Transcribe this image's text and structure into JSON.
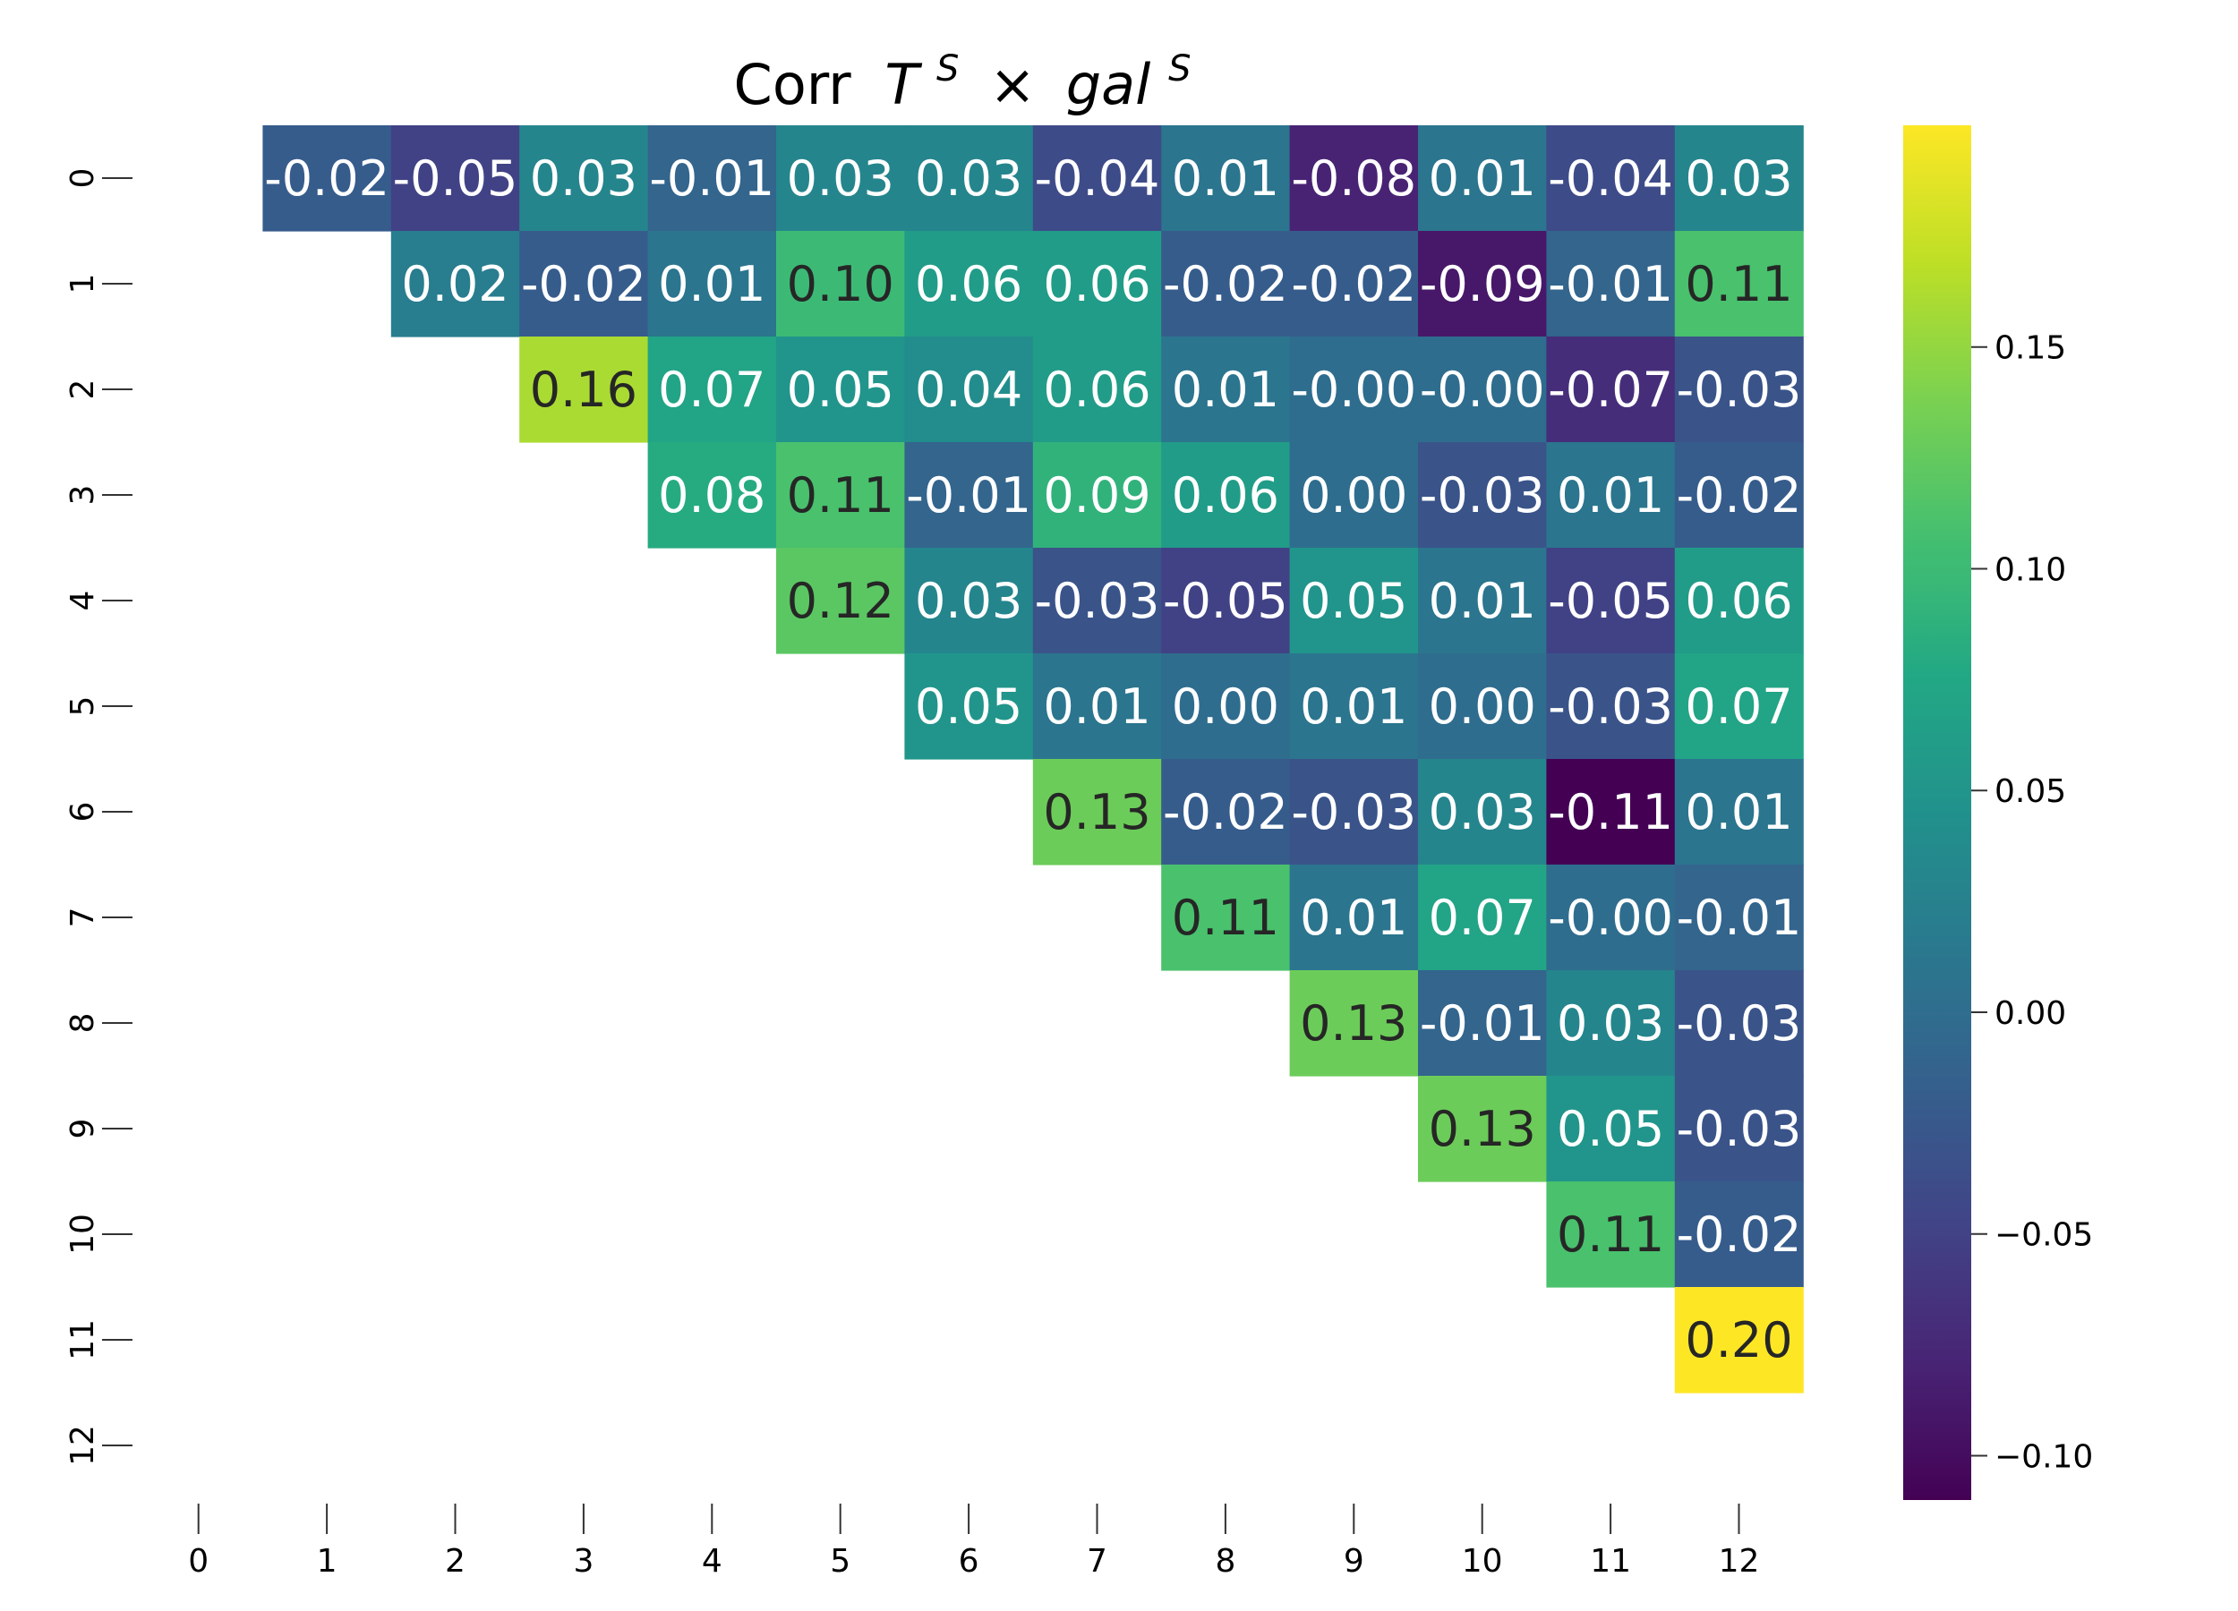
{
  "chart_data": {
    "type": "heatmap",
    "title_text": "Corr",
    "title_sym_a": "T",
    "title_sup_a": "S",
    "title_op": "×",
    "title_sym_b": "gal",
    "title_sup_b": "S",
    "x_labels": [
      "0",
      "1",
      "2",
      "3",
      "4",
      "5",
      "6",
      "7",
      "8",
      "9",
      "10",
      "11",
      "12"
    ],
    "y_labels": [
      "0",
      "1",
      "2",
      "3",
      "4",
      "5",
      "6",
      "7",
      "8",
      "9",
      "10",
      "11",
      "12"
    ],
    "colormap": "viridis",
    "vmin": -0.11,
    "vmax": 0.2,
    "colorbar_ticks": [
      0.15,
      0.1,
      0.05,
      0.0,
      -0.05,
      -0.1
    ],
    "colorbar_tick_labels": [
      "0.15",
      "0.10",
      "0.05",
      "0.00",
      "−0.05",
      "−0.10"
    ],
    "cells": [
      {
        "row": 0,
        "col": 1,
        "value": -0.02,
        "label": "-0.02"
      },
      {
        "row": 0,
        "col": 2,
        "value": -0.05,
        "label": "-0.05"
      },
      {
        "row": 0,
        "col": 3,
        "value": 0.03,
        "label": "0.03"
      },
      {
        "row": 0,
        "col": 4,
        "value": -0.01,
        "label": "-0.01"
      },
      {
        "row": 0,
        "col": 5,
        "value": 0.03,
        "label": "0.03"
      },
      {
        "row": 0,
        "col": 6,
        "value": 0.03,
        "label": "0.03"
      },
      {
        "row": 0,
        "col": 7,
        "value": -0.04,
        "label": "-0.04"
      },
      {
        "row": 0,
        "col": 8,
        "value": 0.01,
        "label": "0.01"
      },
      {
        "row": 0,
        "col": 9,
        "value": -0.08,
        "label": "-0.08"
      },
      {
        "row": 0,
        "col": 10,
        "value": 0.01,
        "label": "0.01"
      },
      {
        "row": 0,
        "col": 11,
        "value": -0.04,
        "label": "-0.04"
      },
      {
        "row": 0,
        "col": 12,
        "value": 0.03,
        "label": "0.03"
      },
      {
        "row": 1,
        "col": 2,
        "value": 0.02,
        "label": "0.02"
      },
      {
        "row": 1,
        "col": 3,
        "value": -0.02,
        "label": "-0.02"
      },
      {
        "row": 1,
        "col": 4,
        "value": 0.01,
        "label": "0.01"
      },
      {
        "row": 1,
        "col": 5,
        "value": 0.1,
        "label": "0.10"
      },
      {
        "row": 1,
        "col": 6,
        "value": 0.06,
        "label": "0.06"
      },
      {
        "row": 1,
        "col": 7,
        "value": 0.06,
        "label": "0.06"
      },
      {
        "row": 1,
        "col": 8,
        "value": -0.02,
        "label": "-0.02"
      },
      {
        "row": 1,
        "col": 9,
        "value": -0.02,
        "label": "-0.02"
      },
      {
        "row": 1,
        "col": 10,
        "value": -0.09,
        "label": "-0.09"
      },
      {
        "row": 1,
        "col": 11,
        "value": -0.01,
        "label": "-0.01"
      },
      {
        "row": 1,
        "col": 12,
        "value": 0.11,
        "label": "0.11"
      },
      {
        "row": 2,
        "col": 3,
        "value": 0.16,
        "label": "0.16"
      },
      {
        "row": 2,
        "col": 4,
        "value": 0.07,
        "label": "0.07"
      },
      {
        "row": 2,
        "col": 5,
        "value": 0.05,
        "label": "0.05"
      },
      {
        "row": 2,
        "col": 6,
        "value": 0.04,
        "label": "0.04"
      },
      {
        "row": 2,
        "col": 7,
        "value": 0.06,
        "label": "0.06"
      },
      {
        "row": 2,
        "col": 8,
        "value": 0.01,
        "label": "0.01"
      },
      {
        "row": 2,
        "col": 9,
        "value": -0.0,
        "label": "-0.00"
      },
      {
        "row": 2,
        "col": 10,
        "value": -0.0,
        "label": "-0.00"
      },
      {
        "row": 2,
        "col": 11,
        "value": -0.07,
        "label": "-0.07"
      },
      {
        "row": 2,
        "col": 12,
        "value": -0.03,
        "label": "-0.03"
      },
      {
        "row": 3,
        "col": 4,
        "value": 0.08,
        "label": "0.08"
      },
      {
        "row": 3,
        "col": 5,
        "value": 0.11,
        "label": "0.11"
      },
      {
        "row": 3,
        "col": 6,
        "value": -0.01,
        "label": "-0.01"
      },
      {
        "row": 3,
        "col": 7,
        "value": 0.09,
        "label": "0.09"
      },
      {
        "row": 3,
        "col": 8,
        "value": 0.06,
        "label": "0.06"
      },
      {
        "row": 3,
        "col": 9,
        "value": 0.0,
        "label": "0.00"
      },
      {
        "row": 3,
        "col": 10,
        "value": -0.03,
        "label": "-0.03"
      },
      {
        "row": 3,
        "col": 11,
        "value": 0.01,
        "label": "0.01"
      },
      {
        "row": 3,
        "col": 12,
        "value": -0.02,
        "label": "-0.02"
      },
      {
        "row": 4,
        "col": 5,
        "value": 0.12,
        "label": "0.12"
      },
      {
        "row": 4,
        "col": 6,
        "value": 0.03,
        "label": "0.03"
      },
      {
        "row": 4,
        "col": 7,
        "value": -0.03,
        "label": "-0.03"
      },
      {
        "row": 4,
        "col": 8,
        "value": -0.05,
        "label": "-0.05"
      },
      {
        "row": 4,
        "col": 9,
        "value": 0.05,
        "label": "0.05"
      },
      {
        "row": 4,
        "col": 10,
        "value": 0.01,
        "label": "0.01"
      },
      {
        "row": 4,
        "col": 11,
        "value": -0.05,
        "label": "-0.05"
      },
      {
        "row": 4,
        "col": 12,
        "value": 0.06,
        "label": "0.06"
      },
      {
        "row": 5,
        "col": 6,
        "value": 0.05,
        "label": "0.05"
      },
      {
        "row": 5,
        "col": 7,
        "value": 0.01,
        "label": "0.01"
      },
      {
        "row": 5,
        "col": 8,
        "value": 0.0,
        "label": "0.00"
      },
      {
        "row": 5,
        "col": 9,
        "value": 0.01,
        "label": "0.01"
      },
      {
        "row": 5,
        "col": 10,
        "value": 0.0,
        "label": "0.00"
      },
      {
        "row": 5,
        "col": 11,
        "value": -0.03,
        "label": "-0.03"
      },
      {
        "row": 5,
        "col": 12,
        "value": 0.07,
        "label": "0.07"
      },
      {
        "row": 6,
        "col": 7,
        "value": 0.13,
        "label": "0.13"
      },
      {
        "row": 6,
        "col": 8,
        "value": -0.02,
        "label": "-0.02"
      },
      {
        "row": 6,
        "col": 9,
        "value": -0.03,
        "label": "-0.03"
      },
      {
        "row": 6,
        "col": 10,
        "value": 0.03,
        "label": "0.03"
      },
      {
        "row": 6,
        "col": 11,
        "value": -0.11,
        "label": "-0.11"
      },
      {
        "row": 6,
        "col": 12,
        "value": 0.01,
        "label": "0.01"
      },
      {
        "row": 7,
        "col": 8,
        "value": 0.11,
        "label": "0.11"
      },
      {
        "row": 7,
        "col": 9,
        "value": 0.01,
        "label": "0.01"
      },
      {
        "row": 7,
        "col": 10,
        "value": 0.07,
        "label": "0.07"
      },
      {
        "row": 7,
        "col": 11,
        "value": -0.0,
        "label": "-0.00"
      },
      {
        "row": 7,
        "col": 12,
        "value": -0.01,
        "label": "-0.01"
      },
      {
        "row": 8,
        "col": 9,
        "value": 0.13,
        "label": "0.13"
      },
      {
        "row": 8,
        "col": 10,
        "value": -0.01,
        "label": "-0.01"
      },
      {
        "row": 8,
        "col": 11,
        "value": 0.03,
        "label": "0.03"
      },
      {
        "row": 8,
        "col": 12,
        "value": -0.03,
        "label": "-0.03"
      },
      {
        "row": 9,
        "col": 10,
        "value": 0.13,
        "label": "0.13"
      },
      {
        "row": 9,
        "col": 11,
        "value": 0.05,
        "label": "0.05"
      },
      {
        "row": 9,
        "col": 12,
        "value": -0.03,
        "label": "-0.03"
      },
      {
        "row": 10,
        "col": 11,
        "value": 0.11,
        "label": "0.11"
      },
      {
        "row": 10,
        "col": 12,
        "value": -0.02,
        "label": "-0.02"
      },
      {
        "row": 11,
        "col": 12,
        "value": 0.2,
        "label": "0.20"
      }
    ]
  }
}
